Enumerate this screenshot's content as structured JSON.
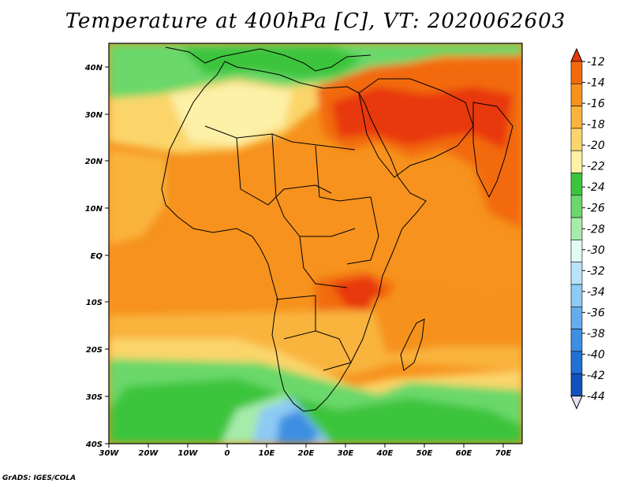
{
  "title": "Temperature at 400hPa [C], VT: 2020062603",
  "credit": "GrADS: IGES/COLA",
  "map": {
    "lon_range": [
      -30,
      75
    ],
    "lat_range": [
      -40,
      45
    ],
    "lon_ticks": [
      "30W",
      "20W",
      "10W",
      "0",
      "10E",
      "20E",
      "30E",
      "40E",
      "50E",
      "60E",
      "70E"
    ],
    "lat_ticks": [
      "40N",
      "30N",
      "20N",
      "10N",
      "EQ",
      "10S",
      "20S",
      "30S",
      "40S"
    ],
    "field": "Temperature at 400hPa",
    "units": "C"
  },
  "colorbar": {
    "labels": [
      "-12",
      "-14",
      "-16",
      "-18",
      "-20",
      "-22",
      "-24",
      "-26",
      "-28",
      "-30",
      "-32",
      "-34",
      "-36",
      "-38",
      "-40",
      "-42",
      "-44"
    ],
    "colors": [
      "#e8380a",
      "#f26a0c",
      "#f6921d",
      "#f9b43c",
      "#fbd56b",
      "#fdf0a7",
      "#3cc43c",
      "#6ad86a",
      "#a7ebaa",
      "#e2fbf4",
      "#b7e4fb",
      "#8dcaf4",
      "#63adec",
      "#3d8fe3",
      "#2070d6",
      "#1350bd",
      "#0b2a8a"
    ]
  }
}
